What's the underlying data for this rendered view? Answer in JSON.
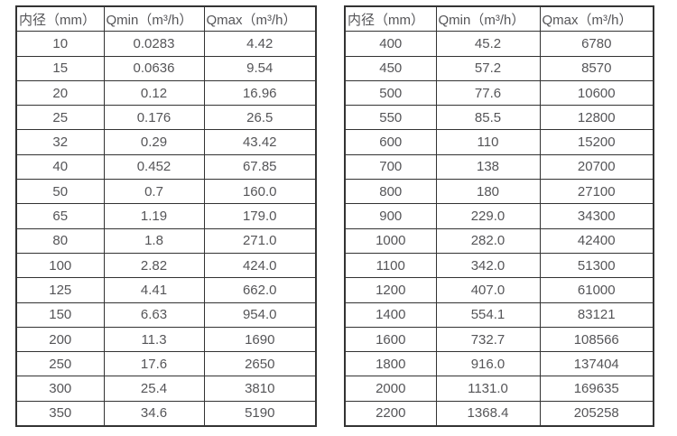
{
  "page": {
    "background_color": "#ffffff",
    "border_color": "#333333",
    "text_color": "#555558"
  },
  "tables": [
    {
      "name": "flow-rate-table-small-diameters",
      "headers": [
        "内径（mm）",
        "Qmin（m³/h）",
        "Qmax（m³/h）"
      ],
      "rows": [
        [
          "10",
          "0.0283",
          "4.42"
        ],
        [
          "15",
          "0.0636",
          "9.54"
        ],
        [
          "20",
          "0.12",
          "16.96"
        ],
        [
          "25",
          "0.176",
          "26.5"
        ],
        [
          "32",
          "0.29",
          "43.42"
        ],
        [
          "40",
          "0.452",
          "67.85"
        ],
        [
          "50",
          "0.7",
          "160.0"
        ],
        [
          "65",
          "1.19",
          "179.0"
        ],
        [
          "80",
          "1.8",
          "271.0"
        ],
        [
          "100",
          "2.82",
          "424.0"
        ],
        [
          "125",
          "4.41",
          "662.0"
        ],
        [
          "150",
          "6.63",
          "954.0"
        ],
        [
          "200",
          "11.3",
          "1690"
        ],
        [
          "250",
          "17.6",
          "2650"
        ],
        [
          "300",
          "25.4",
          "3810"
        ],
        [
          "350",
          "34.6",
          "5190"
        ]
      ]
    },
    {
      "name": "flow-rate-table-large-diameters",
      "headers": [
        "内径（mm）",
        "Qmin（m³/h）",
        "Qmax（m³/h）"
      ],
      "rows": [
        [
          "400",
          "45.2",
          "6780"
        ],
        [
          "450",
          "57.2",
          "8570"
        ],
        [
          "500",
          "77.6",
          "10600"
        ],
        [
          "550",
          "85.5",
          "12800"
        ],
        [
          "600",
          "110",
          "15200"
        ],
        [
          "700",
          "138",
          "20700"
        ],
        [
          "800",
          "180",
          "27100"
        ],
        [
          "900",
          "229.0",
          "34300"
        ],
        [
          "1000",
          "282.0",
          "42400"
        ],
        [
          "1100",
          "342.0",
          "51300"
        ],
        [
          "1200",
          "407.0",
          "61000"
        ],
        [
          "1400",
          "554.1",
          "83121"
        ],
        [
          "1600",
          "732.7",
          "108566"
        ],
        [
          "1800",
          "916.0",
          "137404"
        ],
        [
          "2000",
          "1131.0",
          "169635"
        ],
        [
          "2200",
          "1368.4",
          "205258"
        ]
      ]
    }
  ]
}
